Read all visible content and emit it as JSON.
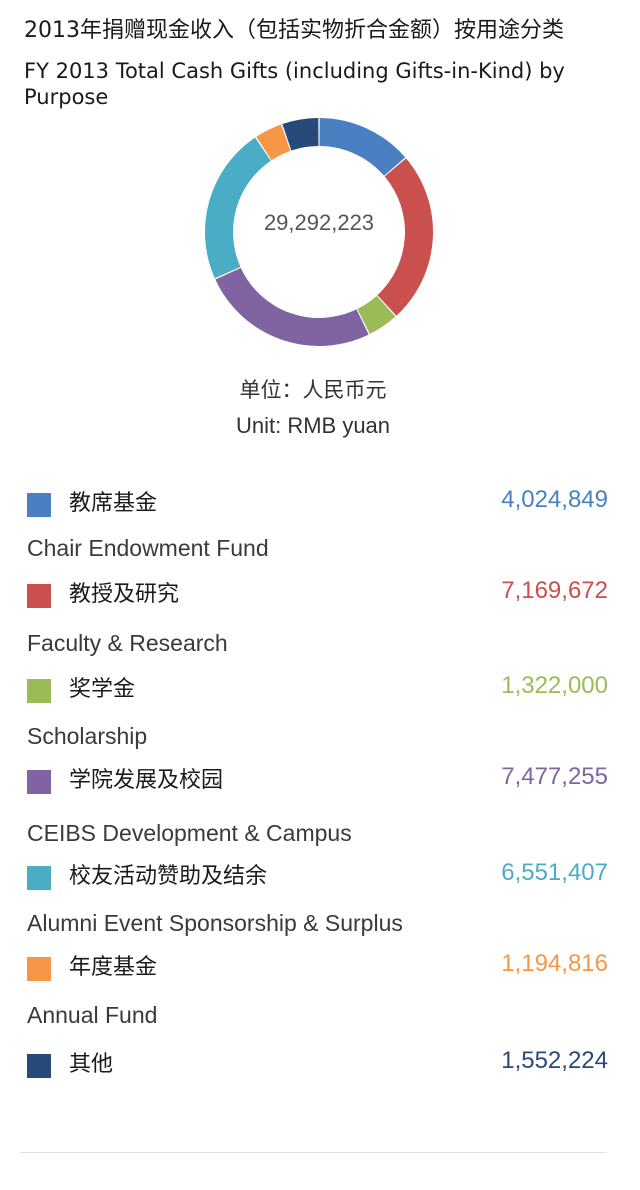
{
  "chart_data": {
    "type": "pie",
    "variant": "donut",
    "title": "2013年捐赠现金收入（包括实物折合金额）按用途分类",
    "subtitle": "FY 2013 Total Cash Gifts (including Gifts-in-Kind) by Purpose",
    "total_label": "29,292,223",
    "unit_zh": "单位：人民币元",
    "unit_en": "Unit: RMB yuan",
    "legend_placement": "bottom",
    "slices": [
      {
        "label_zh": "教席基金",
        "label_en": "Chair Endowment Fund",
        "value": 4024849,
        "value_text": "4,024,849",
        "color": "#4a7fc1"
      },
      {
        "label_zh": "教授及研究",
        "label_en": "Faculty & Research",
        "value": 7169672,
        "value_text": "7,169,672",
        "color": "#c9504c"
      },
      {
        "label_zh": "奖学金",
        "label_en": "Scholarship",
        "value": 1322000,
        "value_text": "1,322,000",
        "color": "#9bbb59"
      },
      {
        "label_zh": "学院发展及校园",
        "label_en": "CEIBS Development & Campus",
        "value": 7477255,
        "value_text": "7,477,255",
        "color": "#8064a2"
      },
      {
        "label_zh": "校友活动赞助及结余",
        "label_en": "Alumni Event Sponsorship & Surplus",
        "value": 6551407,
        "value_text": "6,551,407",
        "color": "#4bacc6"
      },
      {
        "label_zh": "年度基金",
        "label_en": "Annual Fund",
        "value": 1194816,
        "value_text": "1,194,816",
        "color": "#f79646"
      },
      {
        "label_zh": "其他",
        "label_en": "",
        "value": 1552224,
        "value_text": "1,552,224",
        "color": "#284a7a"
      }
    ]
  }
}
